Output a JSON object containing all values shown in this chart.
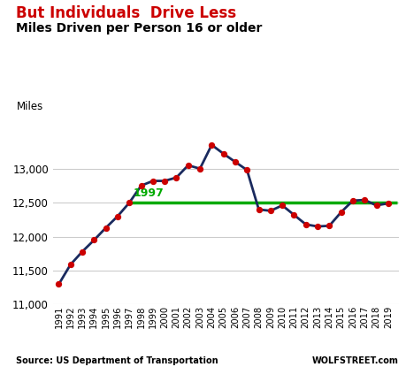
{
  "title_line1": "But Individuals  Drive Less",
  "title_line2": "Miles Driven per Person 16 or older",
  "ylabel": "Miles",
  "source_left": "Source: US Department of Transportation",
  "source_right": "WOLFSTREET.com",
  "years": [
    1991,
    1992,
    1993,
    1994,
    1995,
    1996,
    1997,
    1998,
    1999,
    2000,
    2001,
    2002,
    2003,
    2004,
    2005,
    2006,
    2007,
    2008,
    2009,
    2010,
    2011,
    2012,
    2013,
    2014,
    2015,
    2016,
    2017,
    2018,
    2019
  ],
  "values": [
    11300,
    11590,
    11780,
    11950,
    12130,
    12300,
    12500,
    12750,
    12820,
    12820,
    12870,
    13050,
    13000,
    13350,
    13220,
    13100,
    12980,
    12400,
    12380,
    12460,
    12320,
    12180,
    12150,
    12160,
    12360,
    12530,
    12540,
    12460,
    12490
  ],
  "reference_year": 1997,
  "reference_value": 12500,
  "line_color": "#1a2a5e",
  "marker_color": "#cc0000",
  "reference_line_color": "#00aa00",
  "title1_color": "#cc0000",
  "title2_color": "#000000",
  "ylim": [
    11000,
    13700
  ],
  "yticks": [
    11000,
    11500,
    12000,
    12500,
    13000
  ],
  "background_color": "#ffffff",
  "gridcolor": "#cccccc"
}
